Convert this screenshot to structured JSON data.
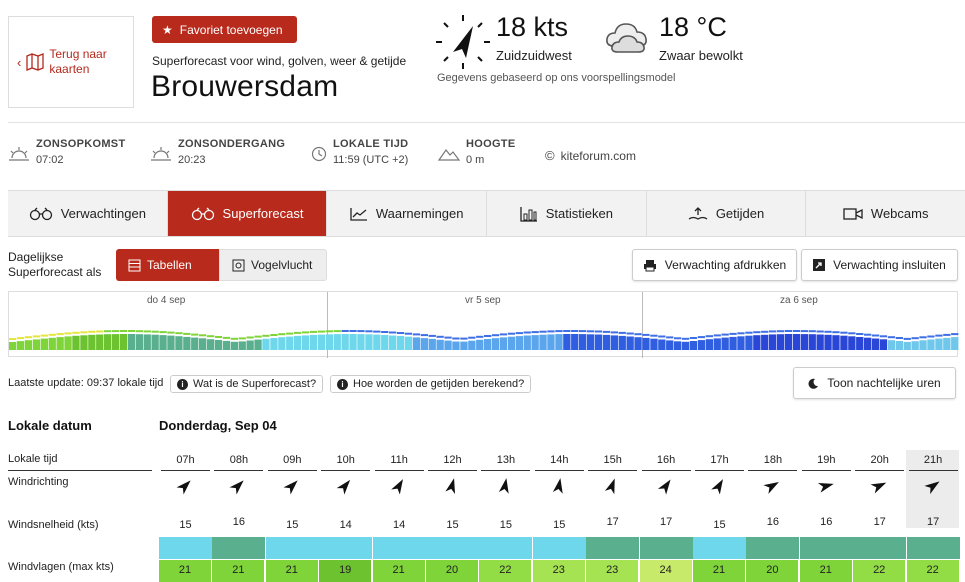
{
  "header": {
    "back_label": "Terug naar kaarten",
    "favorite_label": "Favoriet toevoegen",
    "tagline": "Superforecast voor wind, golven, weer & getijde",
    "spot_name": "Brouwersdam",
    "wind_speed": "18 kts",
    "wind_direction": "Zuidzuidwest",
    "temperature": "18 °C",
    "weather": "Zwaar bewolkt",
    "model_note": "Gegevens gebaseerd op ons voorspellingsmodel"
  },
  "info": {
    "sunrise_label": "ZONSOPKOMST",
    "sunrise_value": "07:02",
    "sunset_label": "ZONSONDERGANG",
    "sunset_value": "20:23",
    "localtime_label": "LOKALE TIJD",
    "localtime_value": "11:59 (UTC +2)",
    "altitude_label": "HOOGTE",
    "altitude_value": "0 m",
    "credit": "kiteforum.com"
  },
  "tabs": [
    {
      "label": "Verwachtingen",
      "icon": "binoculars-icon"
    },
    {
      "label": "Superforecast",
      "icon": "binoculars-icon"
    },
    {
      "label": "Waarnemingen",
      "icon": "line-chart-icon"
    },
    {
      "label": "Statistieken",
      "icon": "bar-chart-icon"
    },
    {
      "label": "Getijden",
      "icon": "tide-icon"
    },
    {
      "label": "Webcams",
      "icon": "camera-icon"
    }
  ],
  "view": {
    "label": "Dagelijkse Superforecast als",
    "tables_label": "Tabellen",
    "birdview_label": "Vogelvlucht",
    "print_label": "Verwachting afdrukken",
    "embed_label": "Verwachting insluiten"
  },
  "overview": {
    "days": [
      "do 4 sep",
      "vr 5 sep",
      "za 6 sep"
    ]
  },
  "update": {
    "text": "Laatste update: 09:37 lokale tijd",
    "info1": "Wat is de Superforecast?",
    "info2": "Hoe worden de getijden berekend?",
    "night_label": "Toon nachtelijke uren"
  },
  "table": {
    "date_label": "Lokale datum",
    "date_value": "Donderdag, Sep 04",
    "row_time": "Lokale tijd",
    "row_dir": "Windrichting",
    "row_speed": "Windsnelheid (kts)",
    "row_gust": "Windvlagen (max kts)",
    "hours": [
      "07h",
      "08h",
      "09h",
      "10h",
      "11h",
      "12h",
      "13h",
      "14h",
      "15h",
      "16h",
      "17h",
      "18h",
      "19h",
      "20h",
      "21h"
    ],
    "directions_deg": [
      225,
      225,
      225,
      220,
      210,
      195,
      190,
      190,
      200,
      215,
      210,
      240,
      255,
      245,
      235
    ],
    "speeds": [
      15,
      16,
      15,
      14,
      14,
      15,
      15,
      15,
      17,
      17,
      15,
      16,
      16,
      17,
      17
    ],
    "gusts": [
      21,
      21,
      21,
      19,
      21,
      20,
      22,
      23,
      23,
      24,
      21,
      20,
      21,
      22,
      22
    ]
  },
  "colors": {
    "brand": "#b72a1c",
    "speed_14": "#6fd7ec",
    "speed_15": "#6fd7ec",
    "speed_16": "#5ab08e",
    "speed_17": "#5ab08e",
    "gust_19": "#6cc22f",
    "gust_20": "#7fd43a",
    "gust_21": "#7fd43a",
    "gust_22": "#92dd45",
    "gust_23": "#a5e353",
    "gust_24": "#c8ea6a"
  }
}
